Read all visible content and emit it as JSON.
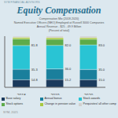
{
  "chart_data": {
    "type": "bar",
    "stacked": true,
    "company": "SYM FINANCIAL ADVISORS",
    "title": "Equity Compensation",
    "subtitle": [
      "Compensation Mix (2018-2020)",
      "Named Executive Officers (NEO) Employed at Russell 3000 Companies",
      "Annual Revenue - $25 - 49.9 Billion",
      "(Percent of total)"
    ],
    "categories": [
      "2018",
      "2019",
      "2020"
    ],
    "series": [
      {
        "name": "Base salary",
        "color": "#1b3a5c",
        "values": [
          14.8,
          15.2,
          15.0
        ]
      },
      {
        "name": "Annual bonus",
        "color": "#1a7f9c",
        "values": [
          20.5,
          20.8,
          20.0
        ]
      },
      {
        "name": "Stock awards",
        "color": "#29c4d4",
        "values": [
          46.5,
          46.0,
          48.0
        ]
      },
      {
        "name": "Stock options",
        "color": "#5dab4a",
        "values": [
          12.8,
          12.0,
          11.0
        ]
      },
      {
        "name": "Change in pension value",
        "color": "#a8c840",
        "values": [
          3.1,
          3.0,
          3.0
        ]
      },
      {
        "name": "Perquisites/ all other comp",
        "color": "#d0d0d0",
        "values": [
          2.3,
          3.0,
          3.0
        ]
      }
    ],
    "annotations": [
      {
        "x": "2018",
        "y": 14.8,
        "text": "14.8"
      },
      {
        "x": "2018",
        "y": 35.3,
        "text": "35.3"
      },
      {
        "x": "2018",
        "y": 81.8,
        "text": "81.8"
      },
      {
        "x": "2019",
        "y": 15.2,
        "text": "15.2"
      },
      {
        "x": "2019",
        "y": 36.0,
        "text": "36.0"
      },
      {
        "x": "2019",
        "y": 82.0,
        "text": "82.0"
      },
      {
        "x": "2020",
        "y": 15.0,
        "text": "15.0"
      },
      {
        "x": "2020",
        "y": 35.0,
        "text": "35.0"
      },
      {
        "x": "2020",
        "y": 83.0,
        "text": "83.0"
      }
    ],
    "ylim": [
      0,
      100
    ],
    "tick_labels": "x",
    "legend": "bottom",
    "footer": "SYM, 2021"
  }
}
